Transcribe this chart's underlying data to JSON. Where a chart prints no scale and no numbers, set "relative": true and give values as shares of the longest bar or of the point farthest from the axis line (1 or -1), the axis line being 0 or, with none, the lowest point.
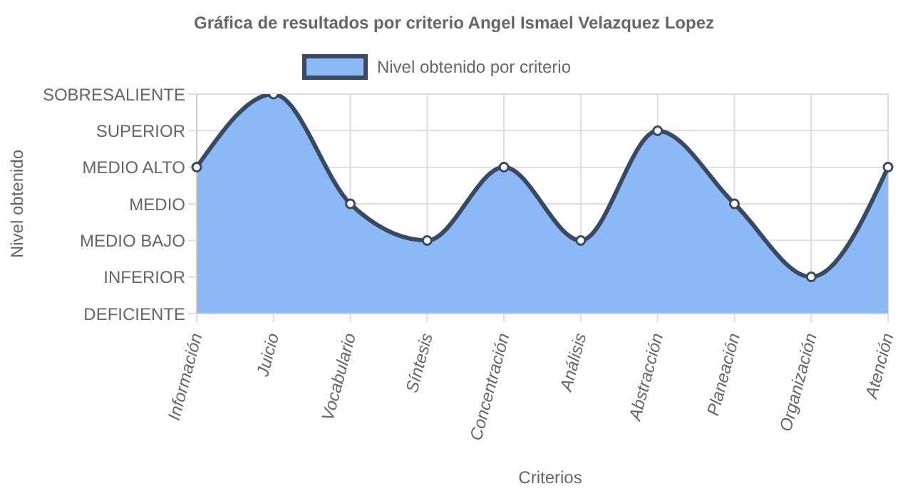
{
  "chart_data": {
    "type": "area",
    "title": "Gráfica de resultados por criterio Angel Ismael Velazquez Lopez",
    "xlabel": "Criterios",
    "categories": [
      "Información",
      "Juicio",
      "Vocabulario",
      "Síntesis",
      "Concentración",
      "Análisis",
      "Abstracción",
      "Planeación",
      "Organización",
      "Atención"
    ],
    "series": [
      {
        "name": "Nivel obtenido por criterio",
        "color": "#8ab9f5",
        "values": [
          0.667,
          1,
          0.5,
          0.333,
          0.667,
          0.333,
          0.833,
          0.5,
          0.167,
          0.667
        ]
      }
    ],
    "relative": true,
    "annotations": [
      "Nivel obtenido",
      "SOBRESALIENTE",
      "SUPERIOR",
      "MEDIO ALTO",
      "MEDIO",
      "MEDIO BAJO",
      "INFERIOR",
      "DEFICIENTE"
    ],
    "grid": true,
    "legend": "top",
    "marker": "circle"
  }
}
